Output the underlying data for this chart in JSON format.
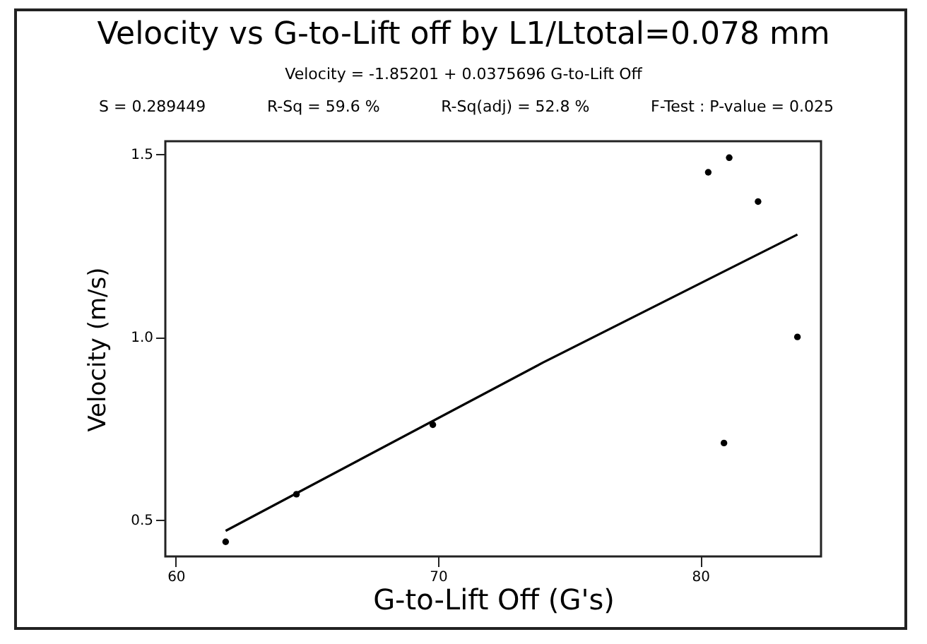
{
  "chart_data": {
    "type": "scatter",
    "title": "Velocity vs G-to-Lift off by L1/Ltotal=0.078 mm",
    "subtitle": "Velocity = -1.85201 + 0.0375696 G-to-Lift Off",
    "annotations": [
      "S = 0.289449",
      "R-Sq = 59.6 %",
      "R-Sq(adj) = 52.8 %",
      "F-Test : P-value = 0.025"
    ],
    "xlabel": "G-to-Lift Off (G's)",
    "ylabel": "Velocity (m/s)",
    "xlim": [
      59.6,
      84.6
    ],
    "xticks": [
      60,
      70,
      80
    ],
    "ylim": [
      0.4,
      1.535
    ],
    "yticks": [
      {
        "value": 0.5,
        "label": "0.5"
      },
      {
        "value": 1.0,
        "label": "1.0"
      },
      {
        "value": 1.5,
        "label": "1.5"
      }
    ],
    "grid": false,
    "series": [
      {
        "color": "#000000",
        "marker": "circle",
        "x": [
          61.9,
          64.6,
          69.8,
          80.3,
          81.1,
          82.2,
          83.7,
          80.9
        ],
        "values": [
          0.44,
          0.57,
          0.76,
          1.45,
          1.49,
          1.37,
          1.0,
          0.71
        ]
      },
      {
        "type": "line",
        "color": "#000000",
        "marker": "none",
        "line_style": "solid",
        "x": [
          61.9,
          74,
          83.7
        ],
        "values": [
          0.47,
          0.93,
          1.28
        ]
      }
    ]
  }
}
